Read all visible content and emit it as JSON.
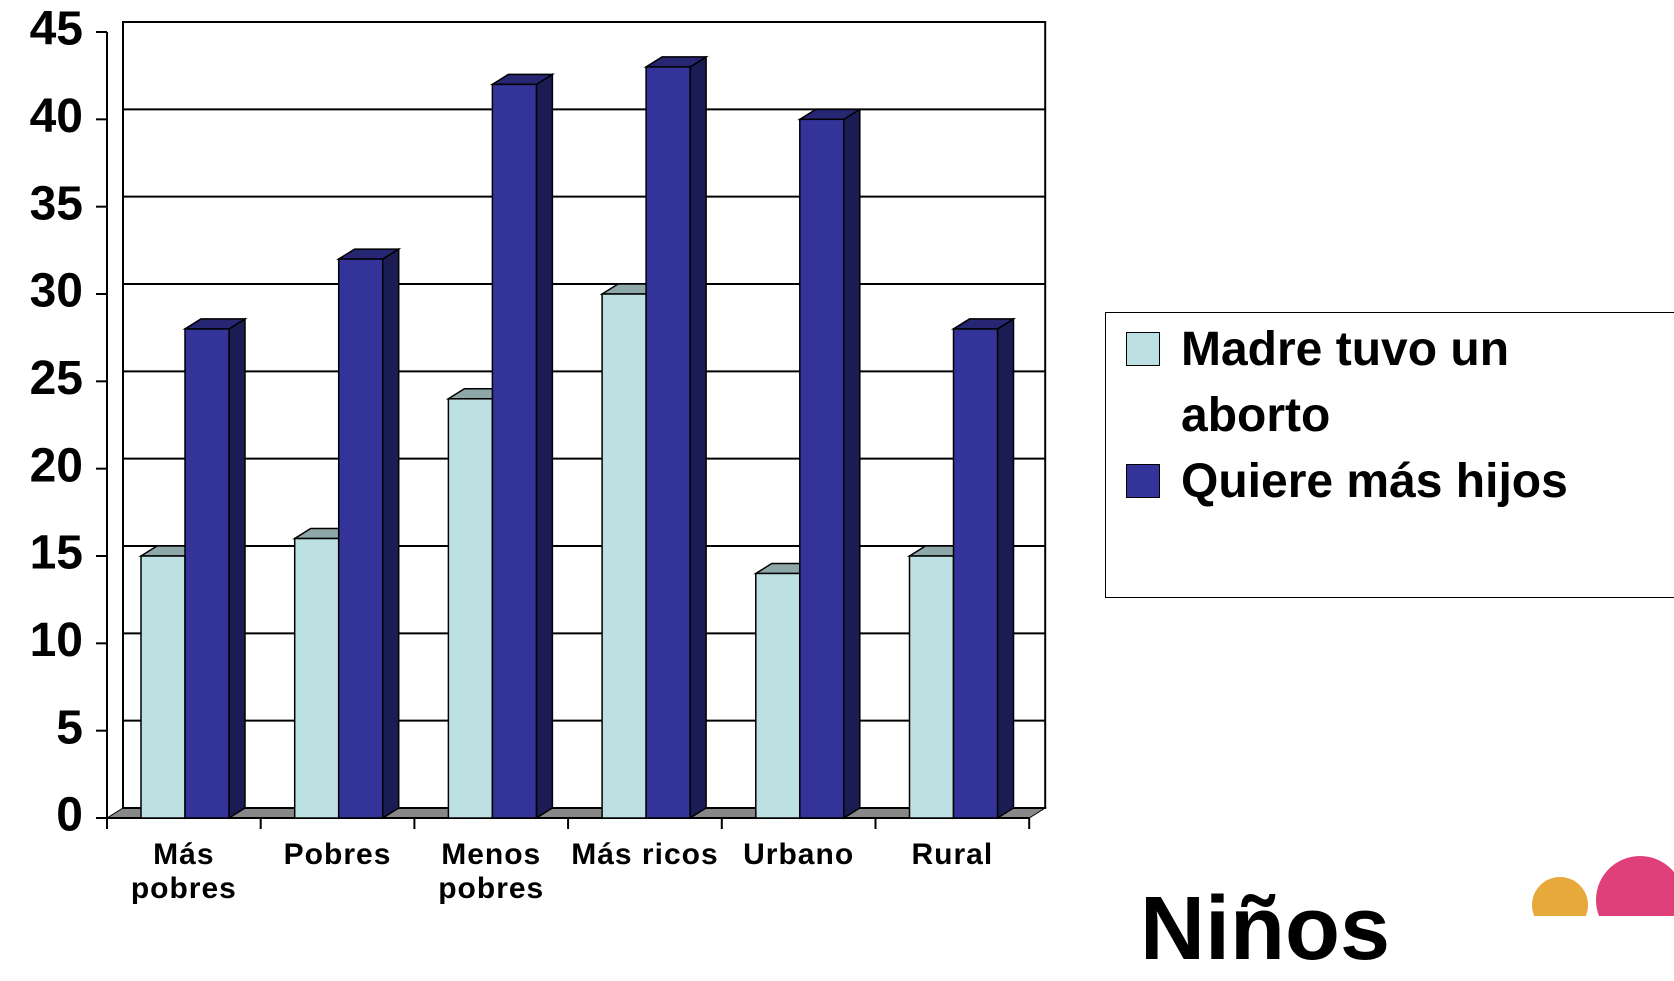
{
  "chart_data": {
    "type": "bar3d",
    "categories": [
      "Más pobres",
      "Pobres",
      "Menos pobres",
      "Más ricos",
      "Urbano",
      "Rural"
    ],
    "series": [
      {
        "name": "Madre tuvo un aborto",
        "color": "#bde0e3",
        "values": [
          15,
          16,
          24,
          30,
          14,
          15
        ]
      },
      {
        "name": "Quiere más hijos",
        "color": "#333399",
        "values": [
          28,
          32,
          42,
          43,
          40,
          28
        ]
      }
    ],
    "ylim": [
      0,
      45
    ],
    "yticks": [
      0,
      5,
      10,
      15,
      20,
      25,
      30,
      35,
      40,
      45
    ],
    "grid": true,
    "legend": "right"
  },
  "footer_text": "Niños"
}
